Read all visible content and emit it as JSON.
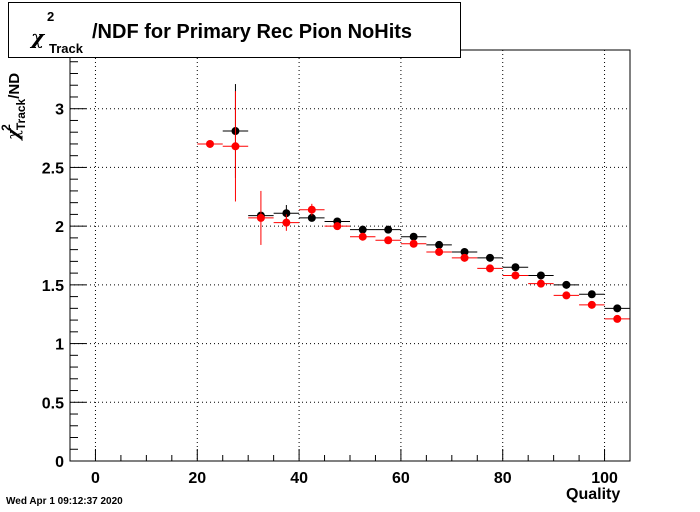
{
  "title": {
    "chi_symbol": "χ",
    "superscript": "2",
    "subscript": "Track",
    "rest": "/NDF for Primary Rec Pion NoHits"
  },
  "y_axis": {
    "chi_symbol": "χ",
    "superscript": "2",
    "subscript": "Track",
    "rest": "/ND"
  },
  "x_axis_label": "Quality",
  "footer": "Wed Apr  1 09:12:37 2020",
  "colors": {
    "black_series": "#000000",
    "red_series": "#ff0000",
    "grid": "#000000"
  },
  "chart_data": {
    "type": "scatter",
    "xlim": [
      -5,
      105
    ],
    "ylim": [
      0,
      3.5
    ],
    "x_ticks": [
      0,
      20,
      40,
      60,
      80,
      100
    ],
    "y_ticks": [
      0,
      0.5,
      1,
      1.5,
      2,
      2.5,
      3
    ],
    "grid": true,
    "series": [
      {
        "color": "#000000",
        "points": [
          {
            "x": 27.5,
            "y": 2.81,
            "xerr": 2.5,
            "yerr": 0.4
          },
          {
            "x": 32.5,
            "y": 2.09,
            "xerr": 2.5,
            "yerr": 0.02
          },
          {
            "x": 37.5,
            "y": 2.11,
            "xerr": 2.5,
            "yerr": 0.07
          },
          {
            "x": 42.5,
            "y": 2.07,
            "xerr": 2.5,
            "yerr": 0.03
          },
          {
            "x": 47.5,
            "y": 2.04,
            "xerr": 2.5,
            "yerr": 0.02
          },
          {
            "x": 52.5,
            "y": 1.97,
            "xerr": 2.5,
            "yerr": 0.01
          },
          {
            "x": 57.5,
            "y": 1.97,
            "xerr": 2.5,
            "yerr": 0.01
          },
          {
            "x": 62.5,
            "y": 1.91,
            "xerr": 2.5,
            "yerr": 0.01
          },
          {
            "x": 67.5,
            "y": 1.84,
            "xerr": 2.5,
            "yerr": 0.01
          },
          {
            "x": 72.5,
            "y": 1.78,
            "xerr": 2.5,
            "yerr": 0.01
          },
          {
            "x": 77.5,
            "y": 1.73,
            "xerr": 2.5,
            "yerr": 0.01
          },
          {
            "x": 82.5,
            "y": 1.65,
            "xerr": 2.5,
            "yerr": 0.01
          },
          {
            "x": 87.5,
            "y": 1.58,
            "xerr": 2.5,
            "yerr": 0.01
          },
          {
            "x": 92.5,
            "y": 1.5,
            "xerr": 2.5,
            "yerr": 0.01
          },
          {
            "x": 97.5,
            "y": 1.42,
            "xerr": 2.5,
            "yerr": 0.01
          },
          {
            "x": 102.5,
            "y": 1.3,
            "xerr": 2.5,
            "yerr": 0.01
          }
        ]
      },
      {
        "color": "#ff0000",
        "points": [
          {
            "x": 22.5,
            "y": 2.7,
            "xerr": 2.5,
            "yerr": 0.0
          },
          {
            "x": 27.5,
            "y": 2.68,
            "xerr": 2.5,
            "yerr": 0.47
          },
          {
            "x": 32.5,
            "y": 2.07,
            "xerr": 2.5,
            "yerr": 0.23
          },
          {
            "x": 37.5,
            "y": 2.03,
            "xerr": 2.5,
            "yerr": 0.07
          },
          {
            "x": 42.5,
            "y": 2.14,
            "xerr": 2.5,
            "yerr": 0.05
          },
          {
            "x": 47.5,
            "y": 2.0,
            "xerr": 2.5,
            "yerr": 0.02
          },
          {
            "x": 52.5,
            "y": 1.91,
            "xerr": 2.5,
            "yerr": 0.01
          },
          {
            "x": 57.5,
            "y": 1.88,
            "xerr": 2.5,
            "yerr": 0.01
          },
          {
            "x": 62.5,
            "y": 1.85,
            "xerr": 2.5,
            "yerr": 0.01
          },
          {
            "x": 67.5,
            "y": 1.78,
            "xerr": 2.5,
            "yerr": 0.01
          },
          {
            "x": 72.5,
            "y": 1.73,
            "xerr": 2.5,
            "yerr": 0.01
          },
          {
            "x": 77.5,
            "y": 1.64,
            "xerr": 2.5,
            "yerr": 0.01
          },
          {
            "x": 82.5,
            "y": 1.58,
            "xerr": 2.5,
            "yerr": 0.01
          },
          {
            "x": 87.5,
            "y": 1.51,
            "xerr": 2.5,
            "yerr": 0.01
          },
          {
            "x": 92.5,
            "y": 1.41,
            "xerr": 2.5,
            "yerr": 0.01
          },
          {
            "x": 97.5,
            "y": 1.33,
            "xerr": 2.5,
            "yerr": 0.01
          },
          {
            "x": 102.5,
            "y": 1.21,
            "xerr": 2.5,
            "yerr": 0.01
          }
        ]
      }
    ]
  }
}
